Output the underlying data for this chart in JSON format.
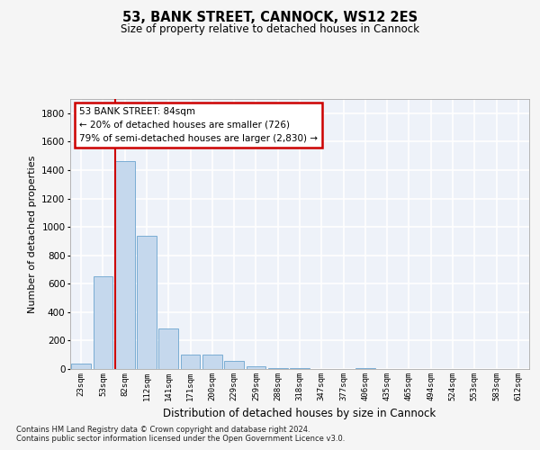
{
  "title1": "53, BANK STREET, CANNOCK, WS12 2ES",
  "title2": "Size of property relative to detached houses in Cannock",
  "xlabel": "Distribution of detached houses by size in Cannock",
  "ylabel": "Number of detached properties",
  "categories": [
    "23sqm",
    "53sqm",
    "82sqm",
    "112sqm",
    "141sqm",
    "171sqm",
    "200sqm",
    "229sqm",
    "259sqm",
    "288sqm",
    "318sqm",
    "347sqm",
    "377sqm",
    "406sqm",
    "435sqm",
    "465sqm",
    "494sqm",
    "524sqm",
    "553sqm",
    "583sqm",
    "612sqm"
  ],
  "values": [
    35,
    650,
    1460,
    940,
    285,
    100,
    100,
    60,
    20,
    8,
    4,
    2,
    2,
    8,
    2,
    0,
    0,
    0,
    0,
    0,
    0
  ],
  "bar_color": "#c5d8ed",
  "bar_edge_color": "#7aadd4",
  "vline_color": "#cc0000",
  "vline_index": 2,
  "annotation_text": "53 BANK STREET: 84sqm\n← 20% of detached houses are smaller (726)\n79% of semi-detached houses are larger (2,830) →",
  "annotation_box_color": "#ffffff",
  "annotation_box_edge": "#cc0000",
  "ylim": [
    0,
    1900
  ],
  "yticks": [
    0,
    200,
    400,
    600,
    800,
    1000,
    1200,
    1400,
    1600,
    1800
  ],
  "bg_color": "#eef2f9",
  "grid_color": "#ffffff",
  "footer1": "Contains HM Land Registry data © Crown copyright and database right 2024.",
  "footer2": "Contains public sector information licensed under the Open Government Licence v3.0."
}
